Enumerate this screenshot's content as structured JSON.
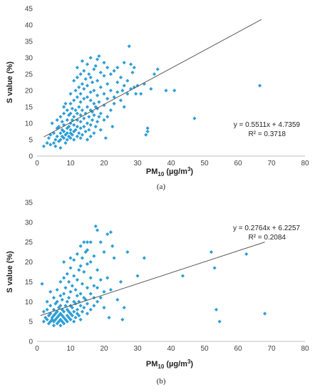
{
  "chart_data": [
    {
      "type": "scatter",
      "panel_label": "(a)",
      "xlabel": "PM",
      "xlabel_sub": "10",
      "xlabel_units": " (µg/m",
      "xlabel_sup": "3",
      "xlabel_close": ")",
      "ylabel": "S value (%)",
      "xlim": [
        0,
        80
      ],
      "ylim": [
        0,
        45
      ],
      "xticks": [
        0,
        10,
        20,
        30,
        40,
        50,
        60,
        70,
        80
      ],
      "yticks": [
        0,
        5,
        10,
        15,
        20,
        25,
        30,
        35,
        40,
        45
      ],
      "grid": false,
      "marker_color": "#2E9ED6",
      "trendline": {
        "slope": 0.5511,
        "intercept": 4.7359,
        "x_range": [
          2,
          67
        ]
      },
      "equation": "y = 0.5511x + 4.7359",
      "r2": "R² = 0.3718",
      "points": [
        [
          2,
          3
        ],
        [
          3,
          4
        ],
        [
          3.5,
          5.5
        ],
        [
          4,
          3.5
        ],
        [
          4,
          6.5
        ],
        [
          4.5,
          10
        ],
        [
          5,
          4
        ],
        [
          5,
          7
        ],
        [
          5.5,
          5
        ],
        [
          5.5,
          3
        ],
        [
          6,
          6
        ],
        [
          6,
          8.5
        ],
        [
          6,
          11
        ],
        [
          6.5,
          4.5
        ],
        [
          6.5,
          9
        ],
        [
          7,
          5
        ],
        [
          7,
          7
        ],
        [
          7,
          12
        ],
        [
          7,
          2.5
        ],
        [
          7.5,
          6
        ],
        [
          7.5,
          8
        ],
        [
          7.5,
          10.5
        ],
        [
          8,
          5.5
        ],
        [
          8,
          7.5
        ],
        [
          8,
          9.5
        ],
        [
          8,
          13
        ],
        [
          8,
          15
        ],
        [
          8.5,
          4
        ],
        [
          8.5,
          6.5
        ],
        [
          8.5,
          16
        ],
        [
          9,
          5
        ],
        [
          9,
          7
        ],
        [
          9,
          8.5
        ],
        [
          9,
          11
        ],
        [
          9,
          14
        ],
        [
          9.5,
          6
        ],
        [
          9.5,
          9
        ],
        [
          9.5,
          12.5
        ],
        [
          10,
          5.5
        ],
        [
          10,
          7
        ],
        [
          10,
          8
        ],
        [
          10,
          10
        ],
        [
          10,
          13
        ],
        [
          10,
          16
        ],
        [
          10,
          19
        ],
        [
          10.5,
          6.5
        ],
        [
          10.5,
          11
        ],
        [
          10.5,
          14.5
        ],
        [
          11,
          5
        ],
        [
          11,
          7.5
        ],
        [
          11,
          9.5
        ],
        [
          11,
          12
        ],
        [
          11,
          17
        ],
        [
          11,
          23
        ],
        [
          11.5,
          8
        ],
        [
          11.5,
          14
        ],
        [
          11.5,
          20
        ],
        [
          12,
          6
        ],
        [
          12,
          9
        ],
        [
          12,
          11
        ],
        [
          12,
          13
        ],
        [
          12,
          18
        ],
        [
          12,
          24
        ],
        [
          12,
          27
        ],
        [
          12.5,
          7
        ],
        [
          12.5,
          15
        ],
        [
          12.5,
          21
        ],
        [
          13,
          5.5
        ],
        [
          13,
          8.5
        ],
        [
          13,
          10.5
        ],
        [
          13,
          12.5
        ],
        [
          13,
          16.5
        ],
        [
          13,
          19
        ],
        [
          13,
          25
        ],
        [
          13.5,
          6.5
        ],
        [
          13.5,
          14
        ],
        [
          13.5,
          22
        ],
        [
          13.5,
          29
        ],
        [
          14,
          9
        ],
        [
          14,
          11.5
        ],
        [
          14,
          17.5
        ],
        [
          14,
          20.5
        ],
        [
          14,
          26
        ],
        [
          14.5,
          7.5
        ],
        [
          14.5,
          13
        ],
        [
          14.5,
          23.5
        ],
        [
          15,
          5
        ],
        [
          15,
          10
        ],
        [
          15,
          15
        ],
        [
          15,
          18
        ],
        [
          15,
          21.5
        ],
        [
          15,
          28
        ],
        [
          15.5,
          8
        ],
        [
          15.5,
          12
        ],
        [
          15.5,
          25
        ],
        [
          16,
          6
        ],
        [
          16,
          9.5
        ],
        [
          16,
          14
        ],
        [
          16,
          17
        ],
        [
          16,
          19.5
        ],
        [
          16,
          24
        ],
        [
          16,
          30
        ],
        [
          16.5,
          11
        ],
        [
          16.5,
          13.5
        ],
        [
          16.5,
          22.5
        ],
        [
          17,
          7
        ],
        [
          17,
          12.5
        ],
        [
          17,
          16
        ],
        [
          17,
          20
        ],
        [
          17,
          26.5
        ],
        [
          17.5,
          9
        ],
        [
          17.5,
          15
        ],
        [
          17.5,
          27.5
        ],
        [
          18,
          10.5
        ],
        [
          18,
          14.5
        ],
        [
          18,
          18.5
        ],
        [
          18,
          23
        ],
        [
          18,
          29.5
        ],
        [
          18.5,
          12
        ],
        [
          18.5,
          16.5
        ],
        [
          18.5,
          30.5
        ],
        [
          19,
          8
        ],
        [
          19,
          13
        ],
        [
          19,
          21
        ],
        [
          19,
          25.5
        ],
        [
          20,
          11
        ],
        [
          20,
          15.5
        ],
        [
          20,
          19
        ],
        [
          20,
          24.5
        ],
        [
          20,
          28.5
        ],
        [
          20.5,
          5.5
        ],
        [
          21,
          12
        ],
        [
          21,
          17.5
        ],
        [
          21,
          22
        ],
        [
          21,
          27
        ],
        [
          22,
          14
        ],
        [
          22,
          20
        ],
        [
          22,
          25
        ],
        [
          22.5,
          9
        ],
        [
          23,
          16
        ],
        [
          23,
          18
        ],
        [
          23,
          26
        ],
        [
          24,
          19.5
        ],
        [
          24,
          22.5
        ],
        [
          24,
          27
        ],
        [
          25,
          17
        ],
        [
          25,
          24
        ],
        [
          25.5,
          20
        ],
        [
          26,
          15
        ],
        [
          26,
          21.5
        ],
        [
          26,
          28.5
        ],
        [
          27,
          19
        ],
        [
          27,
          23
        ],
        [
          27.5,
          33.5
        ],
        [
          28,
          20.5
        ],
        [
          28,
          28
        ],
        [
          28.5,
          25.5
        ],
        [
          29,
          21
        ],
        [
          29,
          27
        ],
        [
          29.5,
          19
        ],
        [
          30,
          21.5
        ],
        [
          31,
          19
        ],
        [
          32,
          22
        ],
        [
          32.5,
          6.5
        ],
        [
          33,
          7.5
        ],
        [
          33,
          8.5
        ],
        [
          34,
          20.5
        ],
        [
          35,
          25
        ],
        [
          36,
          26.5
        ],
        [
          38.5,
          20
        ],
        [
          41,
          20
        ],
        [
          47,
          11.5
        ],
        [
          66.5,
          21.5
        ]
      ]
    },
    {
      "type": "scatter",
      "panel_label": "(b)",
      "xlabel": "PM",
      "xlabel_sub": "10",
      "xlabel_units": " (µg/m",
      "xlabel_sup": "3",
      "xlabel_close": ")",
      "ylabel": "S value (%)",
      "xlim": [
        0,
        80
      ],
      "ylim": [
        0,
        35
      ],
      "xticks": [
        0,
        10,
        20,
        30,
        40,
        50,
        60,
        70,
        80
      ],
      "yticks": [
        0,
        5,
        10,
        15,
        20,
        25,
        30,
        35
      ],
      "grid": false,
      "marker_color": "#2E9ED6",
      "trendline": {
        "slope": 0.2764,
        "intercept": 6.2257,
        "x_range": [
          1,
          68
        ]
      },
      "equation": "y = 0.2764x + 6.2257",
      "r2": "R² = 0.2084",
      "points": [
        [
          1.5,
          14.5
        ],
        [
          2,
          5
        ],
        [
          2,
          7.5
        ],
        [
          2.5,
          6
        ],
        [
          3,
          5.5
        ],
        [
          3,
          8
        ],
        [
          3,
          10
        ],
        [
          3.5,
          4.5
        ],
        [
          3.5,
          6.5
        ],
        [
          4,
          5
        ],
        [
          4,
          7
        ],
        [
          4,
          9
        ],
        [
          4,
          12.5
        ],
        [
          4.5,
          5.5
        ],
        [
          4.5,
          6
        ],
        [
          5,
          4
        ],
        [
          5,
          5
        ],
        [
          5,
          6.5
        ],
        [
          5,
          8
        ],
        [
          5,
          11
        ],
        [
          5.5,
          5.5
        ],
        [
          5.5,
          7
        ],
        [
          5.5,
          9.5
        ],
        [
          6,
          4.5
        ],
        [
          6,
          6
        ],
        [
          6,
          7.5
        ],
        [
          6,
          10
        ],
        [
          6,
          13
        ],
        [
          6.5,
          5
        ],
        [
          6.5,
          6.5
        ],
        [
          6.5,
          8.5
        ],
        [
          7,
          4
        ],
        [
          7,
          5.5
        ],
        [
          7,
          7
        ],
        [
          7,
          9
        ],
        [
          7,
          11.5
        ],
        [
          7,
          15
        ],
        [
          7.5,
          5
        ],
        [
          7.5,
          6.5
        ],
        [
          7.5,
          8
        ],
        [
          7.5,
          10.5
        ],
        [
          8,
          4.5
        ],
        [
          8,
          6
        ],
        [
          8,
          7.5
        ],
        [
          8,
          12
        ],
        [
          8,
          16
        ],
        [
          8,
          20
        ],
        [
          8.5,
          5.5
        ],
        [
          8.5,
          9
        ],
        [
          8.5,
          13.5
        ],
        [
          9,
          5
        ],
        [
          9,
          6.5
        ],
        [
          9,
          8
        ],
        [
          9,
          10
        ],
        [
          9,
          17
        ],
        [
          9.5,
          6
        ],
        [
          9.5,
          7.5
        ],
        [
          9.5,
          11
        ],
        [
          9.5,
          15
        ],
        [
          10,
          5.5
        ],
        [
          10,
          7
        ],
        [
          10,
          9
        ],
        [
          10,
          12.5
        ],
        [
          10,
          18.5
        ],
        [
          10,
          21
        ],
        [
          10.5,
          6.5
        ],
        [
          10.5,
          8.5
        ],
        [
          10.5,
          14
        ],
        [
          11,
          5
        ],
        [
          11,
          7.5
        ],
        [
          11,
          10
        ],
        [
          11,
          16.5
        ],
        [
          11,
          20.5
        ],
        [
          11.5,
          6
        ],
        [
          11.5,
          9.5
        ],
        [
          11.5,
          13
        ],
        [
          12,
          7
        ],
        [
          12,
          8
        ],
        [
          12,
          11.5
        ],
        [
          12,
          15.5
        ],
        [
          12,
          22
        ],
        [
          12.5,
          6.5
        ],
        [
          12.5,
          10
        ],
        [
          12.5,
          18
        ],
        [
          13,
          5.5
        ],
        [
          13,
          9
        ],
        [
          13,
          12
        ],
        [
          13,
          19
        ],
        [
          13,
          24
        ],
        [
          13.5,
          7.5
        ],
        [
          13.5,
          14.5
        ],
        [
          13.5,
          21
        ],
        [
          14,
          8.5
        ],
        [
          14,
          11
        ],
        [
          14,
          17.5
        ],
        [
          14,
          25
        ],
        [
          14.5,
          10.5
        ],
        [
          14.5,
          22.5
        ],
        [
          15,
          7
        ],
        [
          15,
          9.5
        ],
        [
          15,
          13.5
        ],
        [
          15,
          19.5
        ],
        [
          15,
          23
        ],
        [
          15,
          25
        ],
        [
          16,
          8
        ],
        [
          16,
          12
        ],
        [
          16,
          16
        ],
        [
          16,
          20
        ],
        [
          16,
          25
        ],
        [
          17,
          9
        ],
        [
          17,
          11
        ],
        [
          17,
          14
        ],
        [
          17,
          21.5
        ],
        [
          17.5,
          29
        ],
        [
          18,
          10
        ],
        [
          18,
          13.5
        ],
        [
          18,
          18
        ],
        [
          18,
          28
        ],
        [
          19,
          11
        ],
        [
          19,
          15.5
        ],
        [
          19,
          25
        ],
        [
          20,
          8.5
        ],
        [
          20,
          12.5
        ],
        [
          20,
          22.5
        ],
        [
          21,
          16
        ],
        [
          21,
          27
        ],
        [
          21.5,
          6
        ],
        [
          22,
          13
        ],
        [
          22,
          27.5
        ],
        [
          22.5,
          24
        ],
        [
          23,
          21
        ],
        [
          24,
          10.5
        ],
        [
          25,
          15
        ],
        [
          25.5,
          5.5
        ],
        [
          26,
          8.5
        ],
        [
          27,
          22.5
        ],
        [
          30,
          16.5
        ],
        [
          32,
          21
        ],
        [
          43.5,
          16.5
        ],
        [
          52,
          22.5
        ],
        [
          53,
          18.5
        ],
        [
          53.5,
          8
        ],
        [
          54.5,
          5
        ],
        [
          62.5,
          22
        ],
        [
          68,
          7
        ]
      ]
    }
  ]
}
